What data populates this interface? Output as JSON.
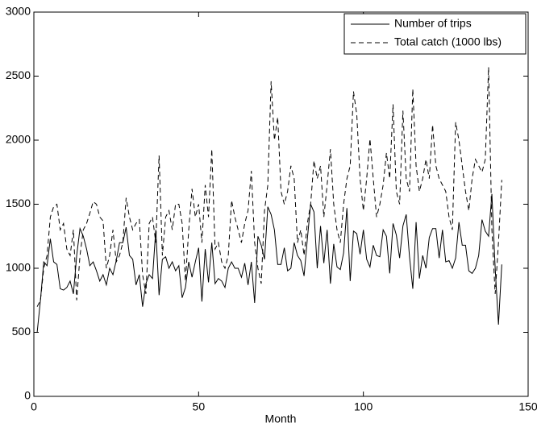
{
  "chart_data": {
    "type": "line",
    "xlabel": "Month",
    "x": [
      1,
      2,
      3,
      4,
      5,
      6,
      7,
      8,
      9,
      10,
      11,
      12,
      13,
      14,
      15,
      16,
      17,
      18,
      19,
      20,
      21,
      22,
      23,
      24,
      25,
      26,
      27,
      28,
      29,
      30,
      31,
      32,
      33,
      34,
      35,
      36,
      37,
      38,
      39,
      40,
      41,
      42,
      43,
      44,
      45,
      46,
      47,
      48,
      49,
      50,
      51,
      52,
      53,
      54,
      55,
      56,
      57,
      58,
      59,
      60,
      61,
      62,
      63,
      64,
      65,
      66,
      67,
      68,
      69,
      70,
      71,
      72,
      73,
      74,
      75,
      76,
      77,
      78,
      79,
      80,
      81,
      82,
      83,
      84,
      85,
      86,
      87,
      88,
      89,
      90,
      91,
      92,
      93,
      94,
      95,
      96,
      97,
      98,
      99,
      100,
      101,
      102,
      103,
      104,
      105,
      106,
      107,
      108,
      109,
      110,
      111,
      112,
      113,
      114,
      115,
      116,
      117,
      118,
      119,
      120,
      121,
      122,
      123,
      124,
      125,
      126,
      127,
      128,
      129,
      130,
      131,
      132,
      133,
      134,
      135,
      136,
      137,
      138,
      139,
      140,
      141,
      142
    ],
    "series": [
      {
        "name": "Number of trips",
        "color": "#000000",
        "dash": false,
        "values": [
          500,
          750,
          1050,
          1020,
          1230,
          1050,
          1030,
          840,
          830,
          850,
          900,
          800,
          1100,
          1310,
          1250,
          1150,
          1020,
          1050,
          980,
          900,
          950,
          870,
          1000,
          950,
          1060,
          1200,
          1200,
          1320,
          1100,
          1070,
          870,
          950,
          700,
          880,
          950,
          920,
          1300,
          790,
          1070,
          1090,
          1000,
          1050,
          980,
          1020,
          770,
          850,
          1050,
          930,
          1050,
          1160,
          740,
          1150,
          890,
          1200,
          880,
          920,
          900,
          850,
          1000,
          1050,
          1000,
          1000,
          930,
          1040,
          870,
          1050,
          730,
          1250,
          1180,
          1070,
          1480,
          1420,
          1300,
          1030,
          1030,
          1160,
          980,
          1000,
          1200,
          1100,
          1060,
          940,
          1230,
          1500,
          1440,
          1000,
          1330,
          1040,
          1300,
          880,
          1190,
          1010,
          990,
          1120,
          1470,
          900,
          1290,
          1270,
          1110,
          1300,
          1070,
          1010,
          1180,
          1100,
          1090,
          1300,
          1250,
          960,
          1350,
          1260,
          1080,
          1330,
          1420,
          1090,
          840,
          1360,
          920,
          1100,
          1000,
          1240,
          1310,
          1310,
          1080,
          1300,
          1050,
          1060,
          1000,
          1080,
          1360,
          1180,
          1180,
          980,
          960,
          1000,
          1100,
          1380,
          1290,
          1250,
          1580,
          1000,
          560,
          1030
        ]
      },
      {
        "name": "Total catch (1000 lbs)",
        "color": "#000000",
        "dash": true,
        "values": [
          700,
          750,
          1000,
          1100,
          1400,
          1480,
          1500,
          1300,
          1350,
          1150,
          1100,
          1300,
          750,
          1100,
          1300,
          1350,
          1430,
          1520,
          1500,
          1400,
          1370,
          1000,
          1100,
          1300,
          1050,
          1100,
          1200,
          1550,
          1400,
          1300,
          1350,
          1380,
          950,
          800,
          1350,
          1400,
          1200,
          1880,
          1100,
          1400,
          1450,
          1300,
          1500,
          1500,
          1350,
          900,
          1300,
          1620,
          1400,
          1500,
          1200,
          1650,
          1400,
          1930,
          1150,
          1200,
          1050,
          1000,
          1100,
          1530,
          1400,
          1300,
          1200,
          1350,
          1450,
          1760,
          1200,
          1000,
          880,
          1450,
          1650,
          2460,
          2000,
          2180,
          1600,
          1500,
          1600,
          1800,
          1700,
          1200,
          1300,
          1100,
          1350,
          1500,
          1840,
          1700,
          1800,
          1400,
          1650,
          1930,
          1500,
          1300,
          1200,
          1500,
          1700,
          1800,
          2380,
          2200,
          1700,
          1450,
          1700,
          2010,
          1700,
          1400,
          1500,
          1650,
          1900,
          1700,
          2280,
          1600,
          1500,
          2230,
          1700,
          1600,
          2400,
          1800,
          1600,
          1700,
          1850,
          1700,
          2120,
          1800,
          1700,
          1650,
          1600,
          1400,
          1300,
          2140,
          2000,
          1800,
          1600,
          1450,
          1700,
          1850,
          1800,
          1750,
          1850,
          2570,
          1300,
          800,
          1200,
          1690
        ]
      }
    ],
    "xlim": [
      0,
      150
    ],
    "xticks": [
      0,
      50,
      100,
      150
    ],
    "ylim": [
      0,
      3000
    ],
    "yticks": [
      0,
      500,
      1000,
      1500,
      2000,
      2500,
      3000
    ],
    "legend": "northeast"
  }
}
